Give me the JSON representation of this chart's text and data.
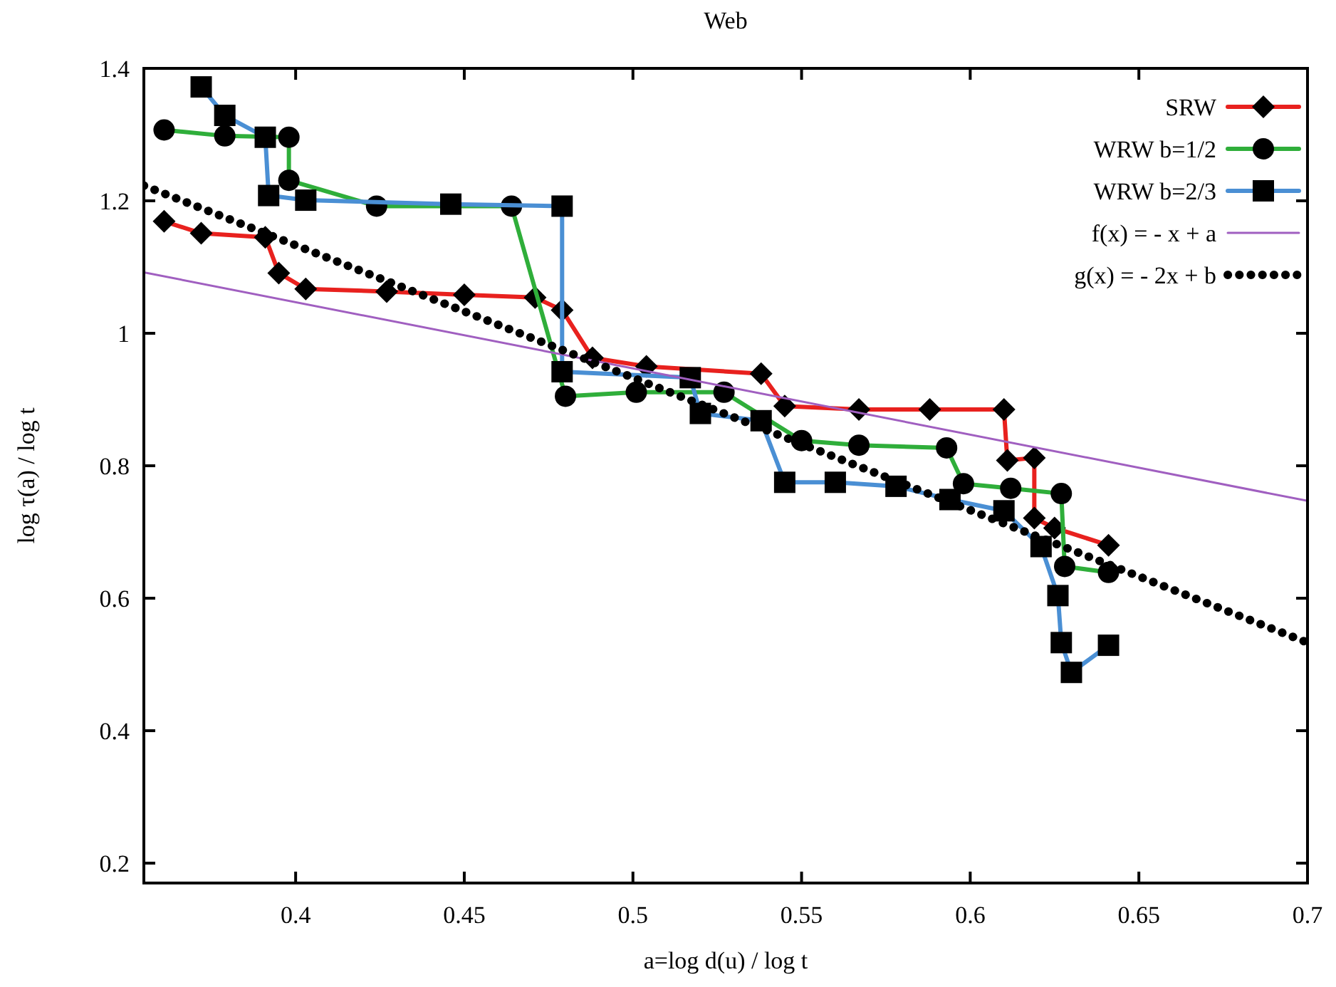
{
  "chart_data": {
    "type": "line",
    "title": "Web",
    "xlabel": "a=log d(u) / log t",
    "ylabel": "log τ(a) / log t",
    "xlim": [
      0.355,
      0.7
    ],
    "xticks": [
      0.4,
      0.45,
      0.5,
      0.55,
      0.6,
      0.65,
      0.7
    ],
    "ylim": [
      0.17,
      1.4
    ],
    "yticks": [
      0.2,
      0.4,
      0.6,
      0.8,
      1,
      1.2,
      1.4
    ],
    "grid": false,
    "legend": "top right",
    "series": [
      {
        "name": "SRW",
        "color": "#e8211e",
        "marker": "diamond",
        "x": [
          0.361,
          0.372,
          0.391,
          0.395,
          0.403,
          0.427,
          0.45,
          0.471,
          0.479,
          0.488,
          0.504,
          0.538,
          0.545,
          0.567,
          0.588,
          0.61,
          0.611,
          0.619,
          0.619,
          0.625,
          0.641
        ],
        "values": [
          1.169,
          1.151,
          1.145,
          1.091,
          1.067,
          1.063,
          1.058,
          1.054,
          1.035,
          0.963,
          0.95,
          0.939,
          0.89,
          0.885,
          0.885,
          0.885,
          0.808,
          0.812,
          0.721,
          0.706,
          0.68
        ]
      },
      {
        "name": "WRW b=1/2",
        "color": "#2fae3a",
        "marker": "circle",
        "x": [
          0.361,
          0.379,
          0.398,
          0.398,
          0.424,
          0.464,
          0.48,
          0.501,
          0.527,
          0.55,
          0.567,
          0.593,
          0.598,
          0.612,
          0.627,
          0.628,
          0.641
        ],
        "values": [
          1.307,
          1.298,
          1.296,
          1.231,
          1.192,
          1.192,
          0.905,
          0.911,
          0.911,
          0.838,
          0.831,
          0.827,
          0.773,
          0.766,
          0.758,
          0.648,
          0.639
        ]
      },
      {
        "name": "WRW b=2/3",
        "color": "#4a8fd4",
        "marker": "square",
        "x": [
          0.372,
          0.379,
          0.391,
          0.392,
          0.403,
          0.446,
          0.479,
          0.479,
          0.517,
          0.52,
          0.538,
          0.545,
          0.56,
          0.578,
          0.594,
          0.61,
          0.621,
          0.626,
          0.627,
          0.63,
          0.641
        ],
        "values": [
          1.372,
          1.329,
          1.296,
          1.208,
          1.201,
          1.195,
          1.192,
          0.942,
          0.933,
          0.879,
          0.868,
          0.775,
          0.775,
          0.769,
          0.749,
          0.732,
          0.678,
          0.604,
          0.533,
          0.488,
          0.529
        ]
      },
      {
        "name": "f(x) = - x + a",
        "color": "#a05fc0",
        "marker": "none",
        "x": [
          0.355,
          0.7
        ],
        "values": [
          1.092,
          0.747
        ]
      },
      {
        "name": "g(x) = - 2x + b",
        "color": "#000000",
        "marker": "none",
        "line_style": "dotted",
        "x": [
          0.355,
          0.7
        ],
        "values": [
          1.223,
          0.533
        ]
      }
    ]
  }
}
